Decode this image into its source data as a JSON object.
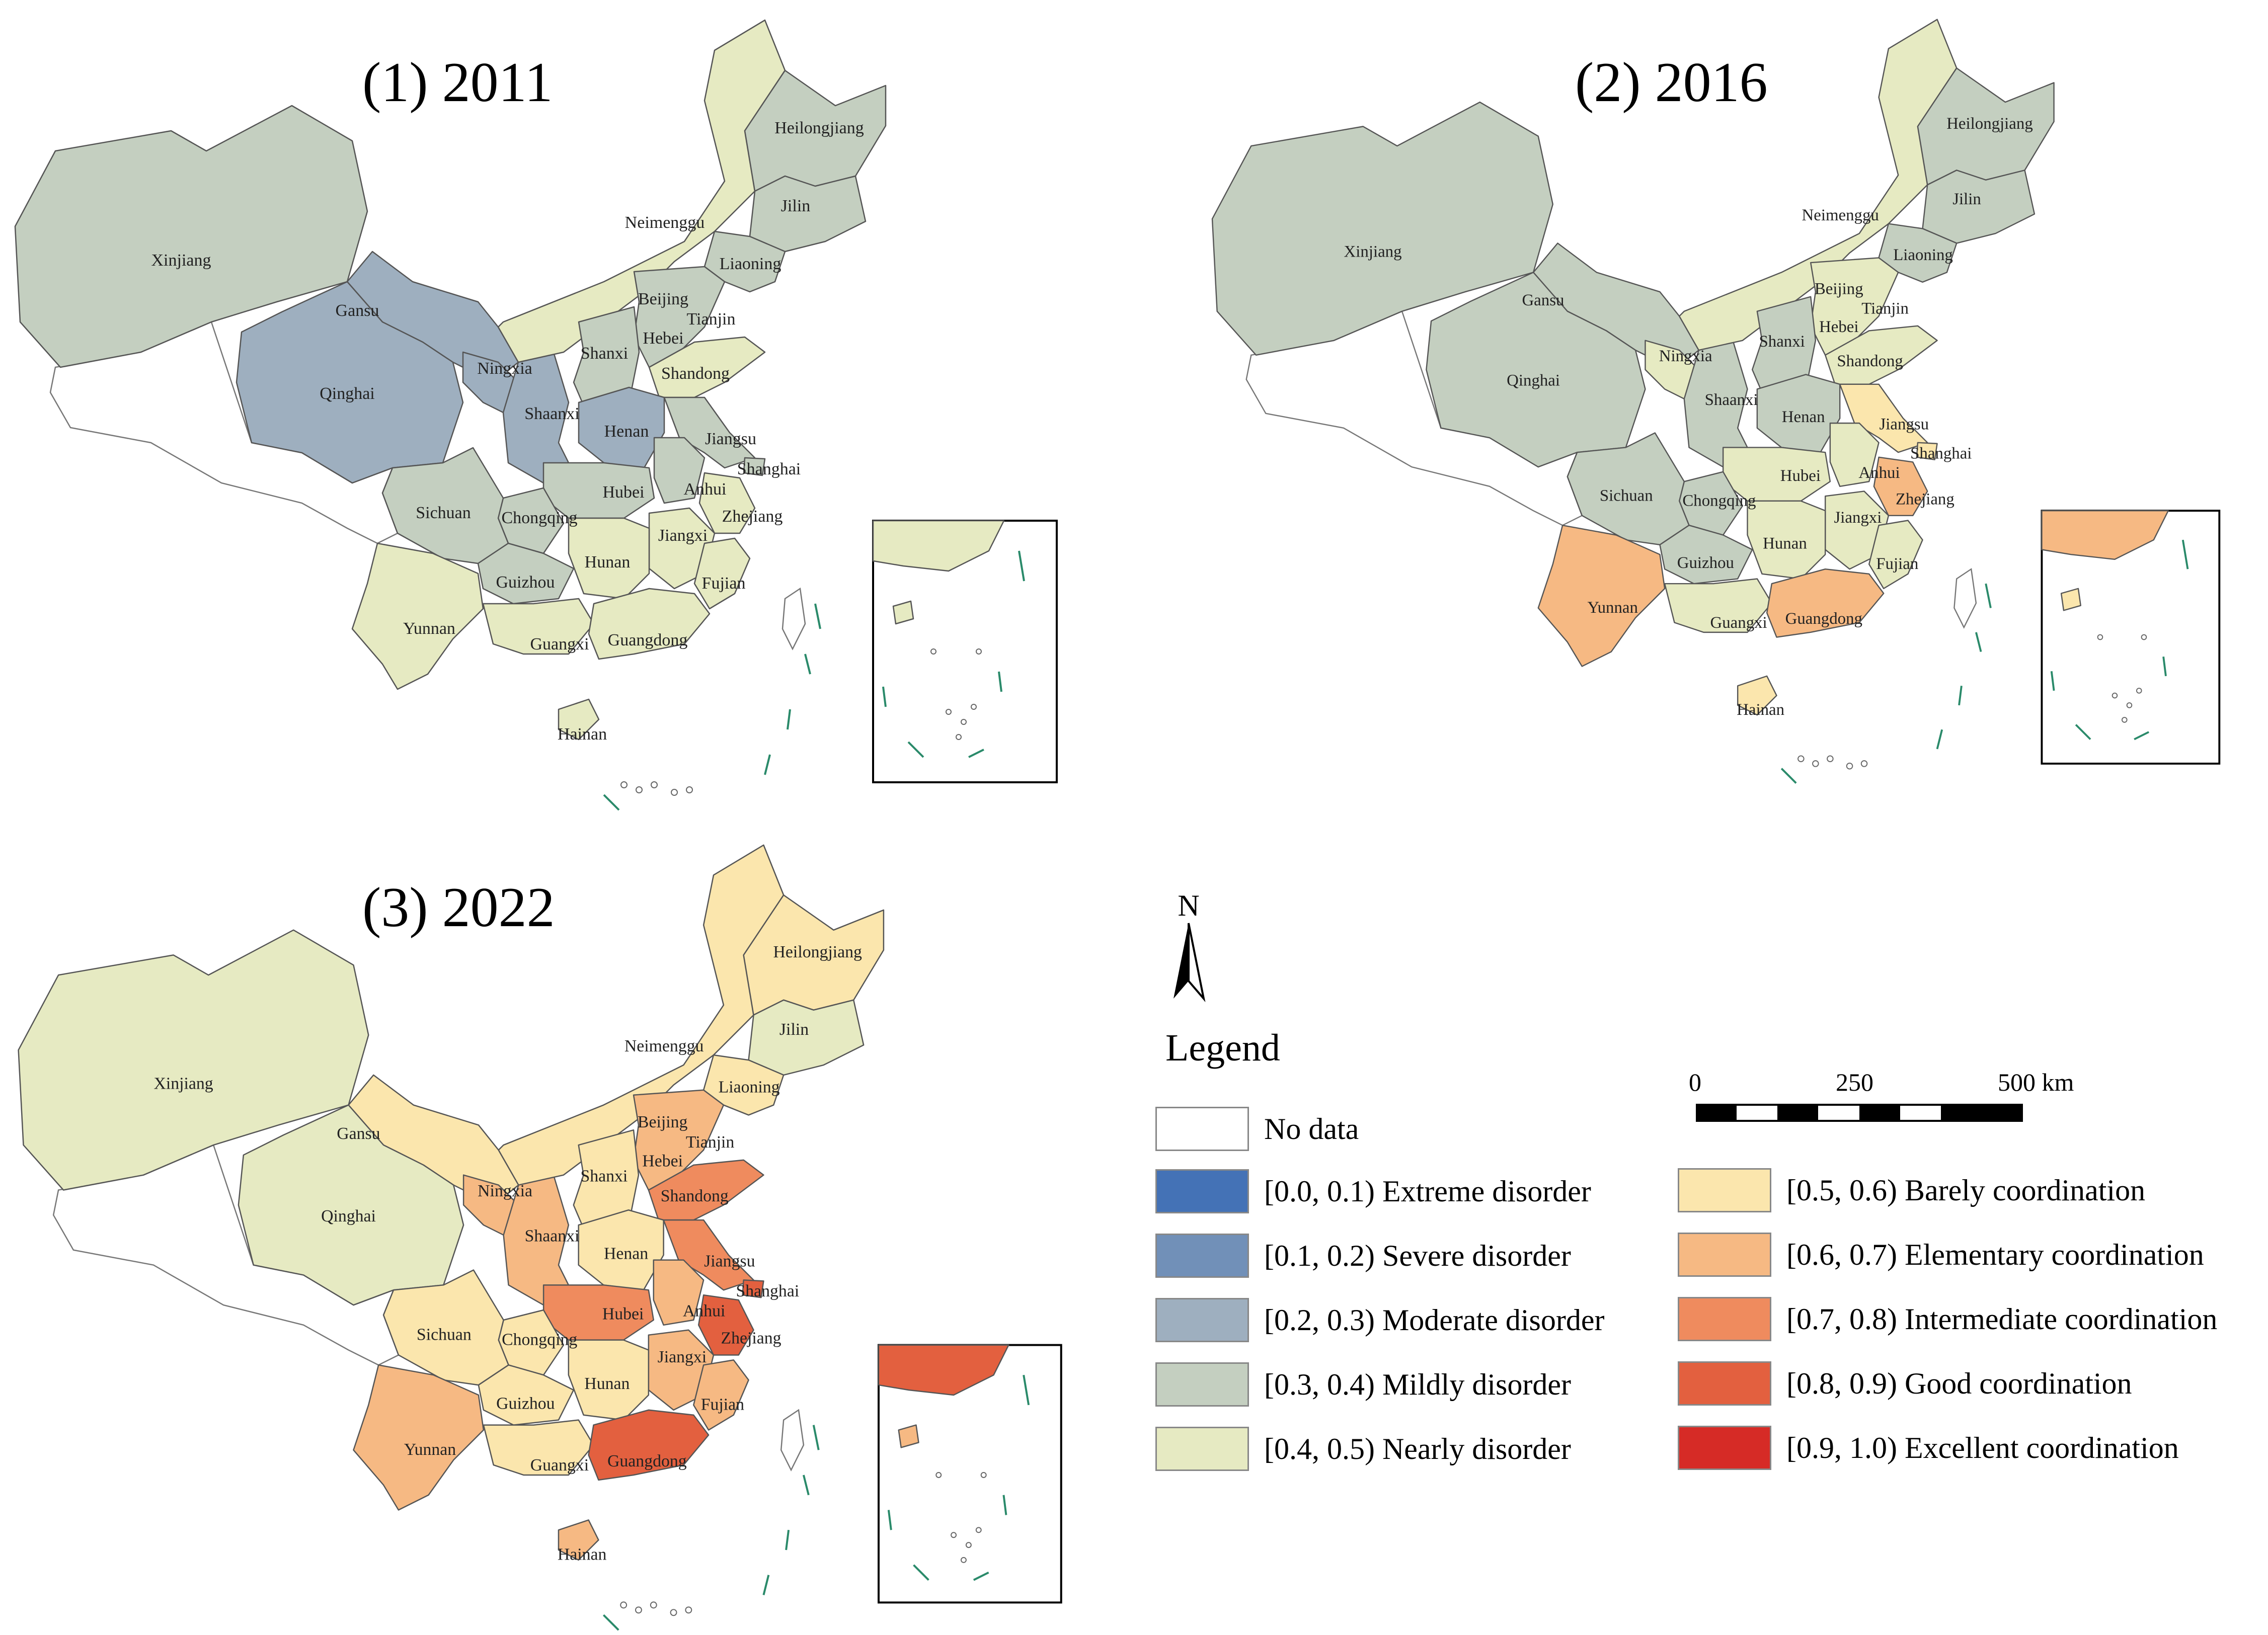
{
  "panels": [
    {
      "title": "(1) 2011",
      "values": {
        "Xinjiang": "mild",
        "Gansu": "moderate",
        "Qinghai": "moderate",
        "Ningxia": "moderate",
        "Shaanxi": "moderate",
        "Neimenggu": "nearly",
        "Heilongjiang": "mild",
        "Jilin": "mild",
        "Liaoning": "mild",
        "Beijing": "nearly",
        "Tianjin": "nodata",
        "Hebei": "mild",
        "Shanxi": "mild",
        "Shandong": "nearly",
        "Henan": "moderate",
        "Jiangsu": "mild",
        "Shanghai": "mild",
        "Anhui": "mild",
        "Hubei": "mild",
        "Chongqing": "mild",
        "Sichuan": "mild",
        "Zhejiang": "nearly",
        "Jiangxi": "nearly",
        "Hunan": "nearly",
        "Guizhou": "mild",
        "Fujian": "nearly",
        "Yunnan": "nearly",
        "Guangxi": "nearly",
        "Guangdong": "nearly",
        "Hainan": "nearly"
      }
    },
    {
      "title": "(2) 2016",
      "values": {
        "Xinjiang": "mild",
        "Gansu": "mild",
        "Qinghai": "mild",
        "Ningxia": "nearly",
        "Shaanxi": "mild",
        "Neimenggu": "nearly",
        "Heilongjiang": "mild",
        "Jilin": "mild",
        "Liaoning": "mild",
        "Beijing": "barely",
        "Tianjin": "nodata",
        "Hebei": "nearly",
        "Shanxi": "mild",
        "Shandong": "nearly",
        "Henan": "mild",
        "Jiangsu": "barely",
        "Shanghai": "barely",
        "Anhui": "nearly",
        "Hubei": "nearly",
        "Chongqing": "mild",
        "Sichuan": "mild",
        "Zhejiang": "elementary",
        "Jiangxi": "nearly",
        "Hunan": "nearly",
        "Guizhou": "mild",
        "Fujian": "nearly",
        "Yunnan": "elementary",
        "Guangxi": "nearly",
        "Guangdong": "elementary",
        "Hainan": "barely"
      }
    },
    {
      "title": "(3) 2022",
      "values": {
        "Xinjiang": "nearly",
        "Gansu": "barely",
        "Qinghai": "nearly",
        "Ningxia": "elementary",
        "Shaanxi": "elementary",
        "Neimenggu": "barely",
        "Heilongjiang": "barely",
        "Jilin": "nearly",
        "Liaoning": "barely",
        "Beijing": "intermediate",
        "Tianjin": "nodata",
        "Hebei": "elementary",
        "Shanxi": "barely",
        "Shandong": "intermediate",
        "Henan": "barely",
        "Jiangsu": "intermediate",
        "Shanghai": "good",
        "Anhui": "elementary",
        "Hubei": "intermediate",
        "Chongqing": "barely",
        "Sichuan": "barely",
        "Zhejiang": "good",
        "Jiangxi": "elementary",
        "Hunan": "barely",
        "Guizhou": "barely",
        "Fujian": "elementary",
        "Yunnan": "elementary",
        "Guangxi": "barely",
        "Guangdong": "good",
        "Hainan": "elementary"
      }
    }
  ],
  "legend": {
    "title": "Legend",
    "items": [
      {
        "key": "nodata",
        "label": "No data",
        "color": "#ffffff"
      },
      {
        "key": "extreme",
        "label": "[0.0, 0.1) Extreme disorder",
        "color": "#4472b6"
      },
      {
        "key": "severe",
        "label": "[0.1, 0.2) Severe disorder",
        "color": "#7190b8"
      },
      {
        "key": "moderate",
        "label": "[0.2, 0.3) Moderate disorder",
        "color": "#9eafbf"
      },
      {
        "key": "mild",
        "label": "[0.3, 0.4) Mildly disorder",
        "color": "#c4cfc0"
      },
      {
        "key": "nearly",
        "label": "[0.4, 0.5) Nearly disorder",
        "color": "#e6eac2"
      },
      {
        "key": "barely",
        "label": "[0.5, 0.6) Barely coordination",
        "color": "#fbe6ad"
      },
      {
        "key": "elementary",
        "label": "[0.6, 0.7) Elementary coordination",
        "color": "#f6b983"
      },
      {
        "key": "intermediate",
        "label": "[0.7, 0.8) Intermediate coordination",
        "color": "#ef8b5e"
      },
      {
        "key": "good",
        "label": "[0.8, 0.9) Good coordination",
        "color": "#e3603f"
      },
      {
        "key": "excellent",
        "label": "[0.9, 1.0) Excellent coordination",
        "color": "#d62b26"
      }
    ]
  },
  "north_label": "N",
  "scale": {
    "labels": [
      "0",
      "250",
      "500 km"
    ]
  }
}
